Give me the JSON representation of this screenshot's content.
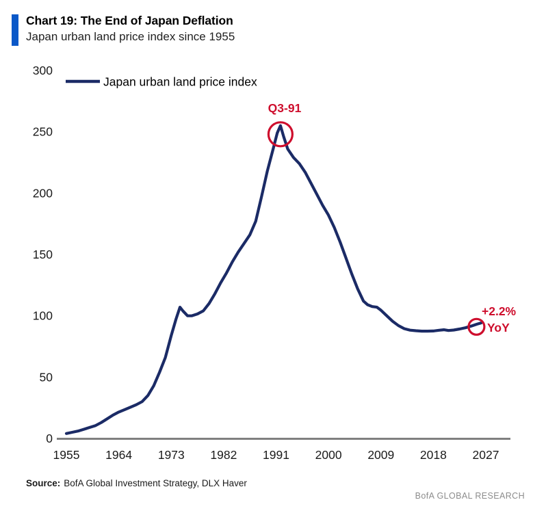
{
  "header": {
    "title": "Chart 19: The End of Japan Deflation",
    "subtitle": "Japan urban land price index since 1955"
  },
  "footer": {
    "source_label": "Source:",
    "source_text": "BofA Global Investment Strategy, DLX Haver",
    "brand": "BofA GLOBAL RESEARCH"
  },
  "colors": {
    "accent_blue": "#0a58c8",
    "line_navy": "#1b2b66",
    "annotation_red": "#ce0e2d",
    "axis_gray": "#7f7f7f",
    "brand_gray": "#8c8c8c"
  },
  "chart_data": {
    "type": "line",
    "title": "Chart 19: The End of Japan Deflation",
    "subtitle": "Japan urban land price index since 1955",
    "xlabel": "",
    "ylabel": "",
    "xlim": [
      1953,
      2031
    ],
    "ylim": [
      0,
      300
    ],
    "grid": false,
    "legend_position": "top-left",
    "xticks": [
      1955,
      1964,
      1973,
      1982,
      1991,
      2000,
      2009,
      2018,
      2027
    ],
    "yticks": [
      0,
      50,
      100,
      150,
      200,
      250,
      300
    ],
    "series": [
      {
        "name": "Japan urban land price index",
        "points": [
          [
            1955,
            4
          ],
          [
            1956,
            5
          ],
          [
            1957,
            6
          ],
          [
            1958,
            7.5
          ],
          [
            1959,
            9
          ],
          [
            1960,
            10.5
          ],
          [
            1961,
            13
          ],
          [
            1962,
            16
          ],
          [
            1963,
            19
          ],
          [
            1964,
            21.5
          ],
          [
            1965,
            23.5
          ],
          [
            1966,
            25.5
          ],
          [
            1967,
            27.5
          ],
          [
            1968,
            30
          ],
          [
            1969,
            35
          ],
          [
            1970,
            43
          ],
          [
            1971,
            54
          ],
          [
            1972,
            66
          ],
          [
            1973,
            84
          ],
          [
            1973.8,
            97
          ],
          [
            1974.5,
            107
          ],
          [
            1975,
            104
          ],
          [
            1975.8,
            100
          ],
          [
            1976.5,
            100
          ],
          [
            1977.5,
            101.5
          ],
          [
            1978.5,
            104
          ],
          [
            1979.5,
            110
          ],
          [
            1980.5,
            118
          ],
          [
            1981.5,
            127
          ],
          [
            1982.5,
            135
          ],
          [
            1983.5,
            144
          ],
          [
            1984.5,
            152
          ],
          [
            1985.5,
            159
          ],
          [
            1986.5,
            166
          ],
          [
            1987.5,
            177
          ],
          [
            1988.5,
            197
          ],
          [
            1989.5,
            218
          ],
          [
            1990.5,
            236
          ],
          [
            1991.2,
            249
          ],
          [
            1991.75,
            255
          ],
          [
            1992.3,
            246
          ],
          [
            1993,
            236
          ],
          [
            1994,
            229
          ],
          [
            1995,
            224
          ],
          [
            1996,
            217
          ],
          [
            1997,
            208
          ],
          [
            1998,
            199
          ],
          [
            1999,
            190
          ],
          [
            2000,
            182
          ],
          [
            2001,
            172
          ],
          [
            2002,
            160
          ],
          [
            2003,
            147
          ],
          [
            2004,
            134
          ],
          [
            2005,
            122
          ],
          [
            2006,
            112
          ],
          [
            2006.7,
            109
          ],
          [
            2007.5,
            107.5
          ],
          [
            2008.3,
            107
          ],
          [
            2009,
            104.5
          ],
          [
            2010,
            100
          ],
          [
            2011,
            95.5
          ],
          [
            2012,
            92
          ],
          [
            2013,
            89.5
          ],
          [
            2014,
            88.3
          ],
          [
            2015,
            87.8
          ],
          [
            2016,
            87.5
          ],
          [
            2017,
            87.5
          ],
          [
            2018,
            87.6
          ],
          [
            2019,
            88.2
          ],
          [
            2019.8,
            88.6
          ],
          [
            2020.6,
            88
          ],
          [
            2021.5,
            88.4
          ],
          [
            2022.5,
            89.2
          ],
          [
            2023.5,
            90.2
          ],
          [
            2024.5,
            91.6
          ],
          [
            2025.5,
            93.2
          ],
          [
            2026.2,
            94.2
          ]
        ]
      }
    ],
    "annotations": [
      {
        "name": "peak",
        "label": "Q3-91",
        "x": 1991.75,
        "y": 248,
        "r": 17.5,
        "circle": true
      },
      {
        "name": "yoy",
        "label_line1": "+2.2%",
        "label_line2": "YoY",
        "x": 2025.4,
        "y": 91,
        "r": 11.5,
        "circle": true
      }
    ]
  }
}
